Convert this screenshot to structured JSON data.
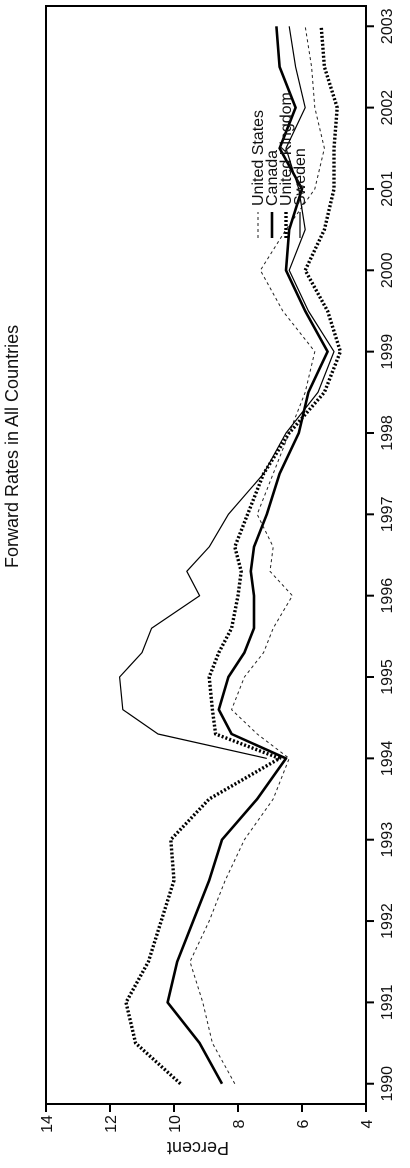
{
  "chart_data": {
    "type": "line",
    "title": "Forward Rates in All Countries",
    "ylabel": "Percent",
    "xlabel": "",
    "x": [
      1990.0,
      1990.5,
      1991.0,
      1991.5,
      1992.0,
      1992.5,
      1993.0,
      1993.5,
      1994.0,
      1994.3,
      1994.6,
      1995.0,
      1995.3,
      1995.6,
      1996.0,
      1996.3,
      1996.6,
      1997.0,
      1997.5,
      1998.0,
      1998.5,
      1999.0,
      1999.5,
      2000.0,
      2000.5,
      2001.0,
      2001.5,
      2002.0,
      2002.5,
      2003.0
    ],
    "xlim": [
      1989.8,
      2003.2
    ],
    "ylim": [
      4,
      14
    ],
    "xticks": [
      "1990",
      "1991",
      "1992",
      "1993",
      "1994",
      "1995",
      "1996",
      "1997",
      "1998",
      "1999",
      "2000",
      "2001",
      "2002",
      "2003"
    ],
    "yticks": [
      "4",
      "6",
      "8",
      "10",
      "12",
      "14"
    ],
    "series": [
      {
        "name": "United States",
        "style": "dashed",
        "values": [
          8.1,
          8.8,
          9.1,
          9.5,
          8.9,
          8.4,
          7.8,
          6.9,
          6.4,
          7.4,
          8.2,
          7.8,
          7.2,
          6.9,
          6.3,
          7.0,
          6.9,
          7.4,
          6.9,
          6.4,
          5.9,
          5.6,
          6.6,
          7.3,
          6.5,
          5.6,
          5.3,
          5.6,
          5.7,
          5.9
        ]
      },
      {
        "name": "Canada",
        "style": "solid-thick",
        "values": [
          8.5,
          9.2,
          10.2,
          9.9,
          9.4,
          8.9,
          8.5,
          7.4,
          6.5,
          8.2,
          8.6,
          8.3,
          7.8,
          7.5,
          7.5,
          7.6,
          7.5,
          7.1,
          6.7,
          6.1,
          5.8,
          5.2,
          5.9,
          6.5,
          6.4,
          6.0,
          6.7,
          6.2,
          6.7,
          6.8
        ]
      },
      {
        "name": "United Kingdom",
        "style": "dotted-thick",
        "values": [
          9.8,
          11.2,
          11.5,
          10.8,
          10.4,
          10.0,
          10.1,
          8.9,
          6.7,
          8.7,
          8.8,
          8.9,
          8.6,
          8.2,
          8.0,
          7.9,
          8.1,
          7.7,
          7.2,
          6.4,
          5.3,
          4.8,
          5.2,
          5.9,
          5.3,
          5.0,
          5.0,
          4.9,
          5.3,
          5.4
        ]
      },
      {
        "name": "Sweden",
        "style": "solid-thin",
        "values": [
          null,
          null,
          null,
          null,
          null,
          null,
          null,
          null,
          7.1,
          10.5,
          11.6,
          11.7,
          11.0,
          10.7,
          9.2,
          9.6,
          8.9,
          8.3,
          7.2,
          6.5,
          5.5,
          5.0,
          5.8,
          6.4,
          5.9,
          6.1,
          6.5,
          5.9,
          6.2,
          6.4
        ]
      }
    ],
    "legend": {
      "position": "top-right"
    },
    "grid": false
  }
}
